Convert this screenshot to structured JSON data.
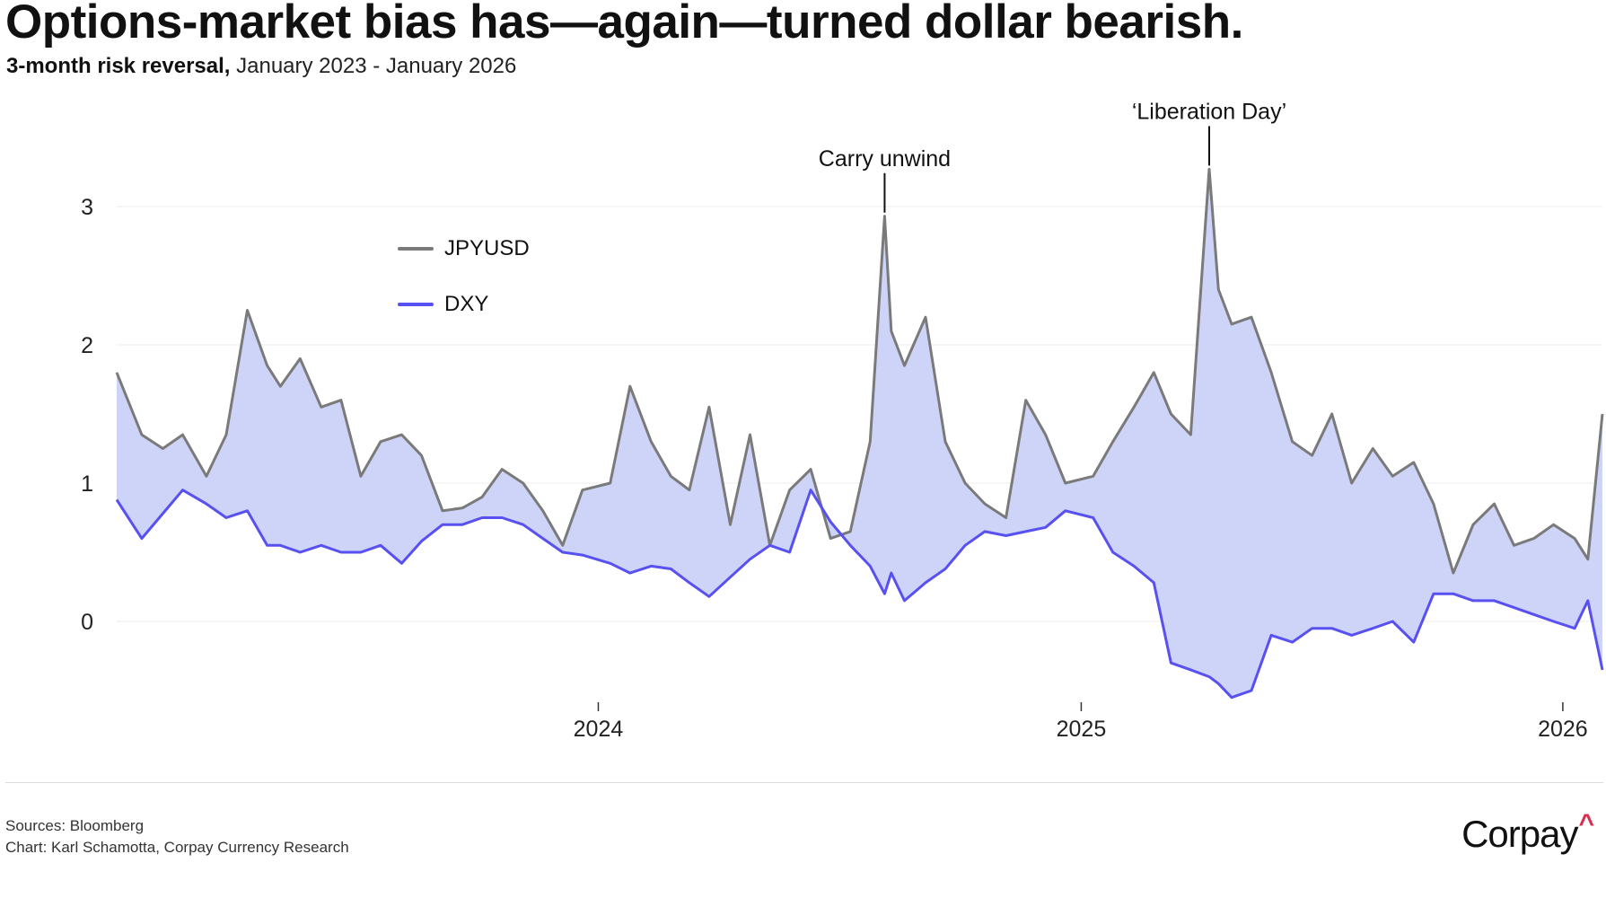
{
  "header": {
    "title": "Options-market bias has—again—turned dollar bearish.",
    "subtitle_bold": "3-month risk reversal,",
    "subtitle_rest": " January 2023 - January 2026"
  },
  "footer": {
    "sources": "Sources: Bloomberg",
    "credit": "Chart: Karl Schamotta, Corpay Currency Research"
  },
  "logo": {
    "text": "Corpay",
    "mark": "^",
    "mark_color": "#d92e4f"
  },
  "colors": {
    "jpyusd": "#7a7a7a",
    "dxy": "#5850f0",
    "fill": "#cdd4f8",
    "grid": "#ececec",
    "text": "#111111"
  },
  "chart_data": {
    "type": "line",
    "title": "",
    "xlabel": "",
    "ylabel": "",
    "x_ticks": [
      "2024",
      "2025",
      "2026"
    ],
    "y_ticks": [
      0,
      1,
      2,
      3
    ],
    "ylim": [
      -0.55,
      3.3
    ],
    "x_range": [
      "2023-01-01",
      "2026-01-31"
    ],
    "grid": "horizontal",
    "fill_between": true,
    "legend_position": "upper-left",
    "annotations": [
      {
        "text": "Carry unwind",
        "x": "2024-08-05",
        "y": 2.93
      },
      {
        "text": "‘Liberation Day’",
        "x": "2025-04-08",
        "y": 3.27
      }
    ],
    "series": [
      {
        "name": "JPYUSD",
        "x": [
          "2023-01-01",
          "2023-01-20",
          "2023-02-05",
          "2023-02-20",
          "2023-03-10",
          "2023-03-25",
          "2023-04-10",
          "2023-04-25",
          "2023-05-05",
          "2023-05-20",
          "2023-06-05",
          "2023-06-20",
          "2023-07-05",
          "2023-07-20",
          "2023-08-05",
          "2023-08-20",
          "2023-09-05",
          "2023-09-20",
          "2023-10-05",
          "2023-10-20",
          "2023-11-05",
          "2023-11-20",
          "2023-12-05",
          "2023-12-20",
          "2024-01-10",
          "2024-01-25",
          "2024-02-10",
          "2024-02-25",
          "2024-03-10",
          "2024-03-25",
          "2024-04-10",
          "2024-04-25",
          "2024-05-10",
          "2024-05-25",
          "2024-06-10",
          "2024-06-25",
          "2024-07-10",
          "2024-07-25",
          "2024-08-05",
          "2024-08-10",
          "2024-08-20",
          "2024-09-05",
          "2024-09-20",
          "2024-10-05",
          "2024-10-20",
          "2024-11-05",
          "2024-11-20",
          "2024-12-05",
          "2024-12-20",
          "2025-01-10",
          "2025-01-25",
          "2025-02-10",
          "2025-02-25",
          "2025-03-10",
          "2025-03-25",
          "2025-04-08",
          "2025-04-15",
          "2025-04-25",
          "2025-05-10",
          "2025-05-25",
          "2025-06-10",
          "2025-06-25",
          "2025-07-10",
          "2025-07-25",
          "2025-08-10",
          "2025-08-25",
          "2025-09-10",
          "2025-09-25",
          "2025-10-10",
          "2025-10-25",
          "2025-11-10",
          "2025-11-25",
          "2025-12-10",
          "2025-12-25",
          "2026-01-10",
          "2026-01-20",
          "2026-01-31"
        ],
        "values": [
          1.8,
          1.35,
          1.25,
          1.35,
          1.05,
          1.35,
          2.25,
          1.85,
          1.7,
          1.9,
          1.55,
          1.6,
          1.05,
          1.3,
          1.35,
          1.2,
          0.8,
          0.82,
          0.9,
          1.1,
          1.0,
          0.8,
          0.55,
          0.95,
          1.0,
          1.7,
          1.3,
          1.05,
          0.95,
          1.55,
          0.7,
          1.35,
          0.55,
          0.95,
          1.1,
          0.6,
          0.65,
          1.3,
          2.93,
          2.1,
          1.85,
          2.2,
          1.3,
          1.0,
          0.85,
          0.75,
          1.6,
          1.35,
          1.0,
          1.05,
          1.3,
          1.55,
          1.8,
          1.5,
          1.35,
          3.27,
          2.4,
          2.15,
          2.2,
          1.8,
          1.3,
          1.2,
          1.5,
          1.0,
          1.25,
          1.05,
          1.15,
          0.85,
          0.35,
          0.7,
          0.85,
          0.55,
          0.6,
          0.7,
          0.6,
          0.45,
          1.5
        ]
      },
      {
        "name": "DXY",
        "x": [
          "2023-01-01",
          "2023-01-20",
          "2023-02-05",
          "2023-02-20",
          "2023-03-10",
          "2023-03-25",
          "2023-04-10",
          "2023-04-25",
          "2023-05-05",
          "2023-05-20",
          "2023-06-05",
          "2023-06-20",
          "2023-07-05",
          "2023-07-20",
          "2023-08-05",
          "2023-08-20",
          "2023-09-05",
          "2023-09-20",
          "2023-10-05",
          "2023-10-20",
          "2023-11-05",
          "2023-11-20",
          "2023-12-05",
          "2023-12-20",
          "2024-01-10",
          "2024-01-25",
          "2024-02-10",
          "2024-02-25",
          "2024-03-10",
          "2024-03-25",
          "2024-04-10",
          "2024-04-25",
          "2024-05-10",
          "2024-05-25",
          "2024-06-10",
          "2024-06-25",
          "2024-07-10",
          "2024-07-25",
          "2024-08-05",
          "2024-08-10",
          "2024-08-20",
          "2024-09-05",
          "2024-09-20",
          "2024-10-05",
          "2024-10-20",
          "2024-11-05",
          "2024-11-20",
          "2024-12-05",
          "2024-12-20",
          "2025-01-10",
          "2025-01-25",
          "2025-02-10",
          "2025-02-25",
          "2025-03-10",
          "2025-03-25",
          "2025-04-08",
          "2025-04-15",
          "2025-04-25",
          "2025-05-10",
          "2025-05-25",
          "2025-06-10",
          "2025-06-25",
          "2025-07-10",
          "2025-07-25",
          "2025-08-10",
          "2025-08-25",
          "2025-09-10",
          "2025-09-25",
          "2025-10-10",
          "2025-10-25",
          "2025-11-10",
          "2025-11-25",
          "2025-12-10",
          "2025-12-25",
          "2026-01-10",
          "2026-01-20",
          "2026-01-31"
        ],
        "values": [
          0.88,
          0.6,
          0.78,
          0.95,
          0.85,
          0.75,
          0.8,
          0.55,
          0.55,
          0.5,
          0.55,
          0.5,
          0.5,
          0.55,
          0.42,
          0.58,
          0.7,
          0.7,
          0.75,
          0.75,
          0.7,
          0.6,
          0.5,
          0.48,
          0.42,
          0.35,
          0.4,
          0.38,
          0.28,
          0.18,
          0.32,
          0.45,
          0.55,
          0.5,
          0.95,
          0.72,
          0.55,
          0.4,
          0.2,
          0.35,
          0.15,
          0.28,
          0.38,
          0.55,
          0.65,
          0.62,
          0.65,
          0.68,
          0.8,
          0.75,
          0.5,
          0.4,
          0.28,
          -0.3,
          -0.35,
          -0.4,
          -0.45,
          -0.55,
          -0.5,
          -0.1,
          -0.15,
          -0.05,
          -0.05,
          -0.1,
          -0.05,
          0.0,
          -0.15,
          0.2,
          0.2,
          0.15,
          0.15,
          0.1,
          0.05,
          0.0,
          -0.05,
          0.15,
          -0.35
        ]
      }
    ]
  }
}
